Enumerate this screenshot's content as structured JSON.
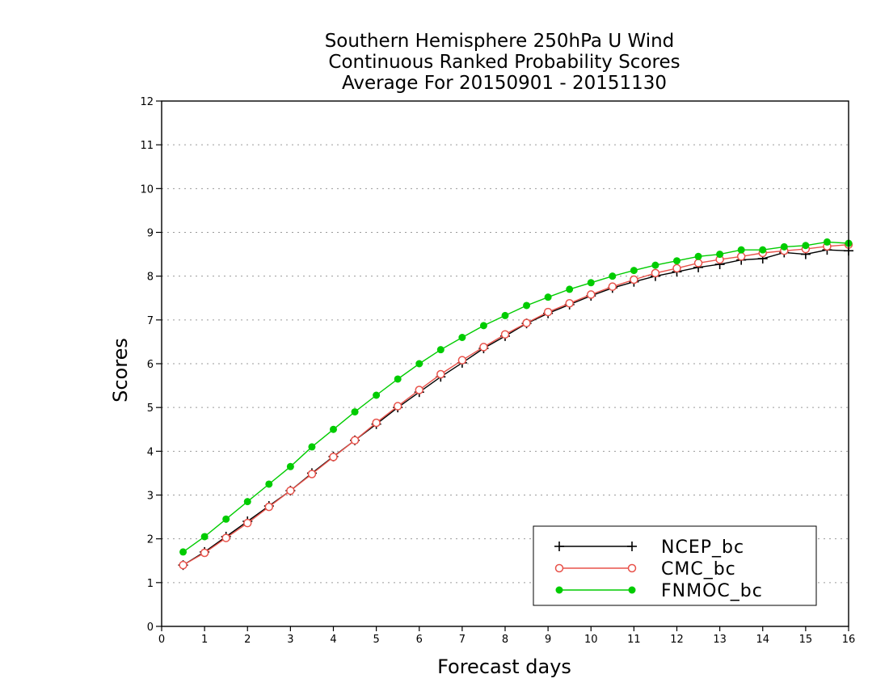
{
  "chart_data": {
    "type": "line",
    "title": [
      "Southern Hemisphere 250hPa U Wind",
      "Continuous Ranked Probability Scores",
      "Average For 20150901 - 20151130"
    ],
    "xlabel": "Forecast days",
    "ylabel": "Scores",
    "xlim": [
      0,
      16
    ],
    "ylim": [
      0,
      12
    ],
    "xticks": [
      "0",
      "1",
      "2",
      "3",
      "4",
      "5",
      "6",
      "7",
      "8",
      "9",
      "10",
      "11",
      "12",
      "13",
      "14",
      "15",
      "16"
    ],
    "yticks": [
      "0",
      "1",
      "2",
      "3",
      "4",
      "5",
      "6",
      "7",
      "8",
      "9",
      "10",
      "11",
      "12"
    ],
    "grid": "horizontal dotted",
    "legend_position": "bottom-right",
    "x": [
      0.5,
      1,
      1.5,
      2,
      2.5,
      3,
      3.5,
      4,
      4.5,
      5,
      5.5,
      6,
      6.5,
      7,
      7.5,
      8,
      8.5,
      9,
      9.5,
      10,
      10.5,
      11,
      11.5,
      12,
      12.5,
      13,
      13.5,
      14,
      14.5,
      15,
      15.5,
      16
    ],
    "series": [
      {
        "name": "NCEP_bc",
        "color": "#000000",
        "marker": "plus",
        "values": [
          1.4,
          1.7,
          2.05,
          2.4,
          2.75,
          3.1,
          3.5,
          3.88,
          4.25,
          4.62,
          5.0,
          5.35,
          5.7,
          6.02,
          6.35,
          6.63,
          6.92,
          7.15,
          7.35,
          7.55,
          7.73,
          7.87,
          8.0,
          8.1,
          8.2,
          8.27,
          8.37,
          8.4,
          8.54,
          8.5,
          8.6,
          8.58
        ]
      },
      {
        "name": "CMC_bc",
        "color": "#e8524a",
        "marker": "open-circle",
        "values": [
          1.4,
          1.68,
          2.02,
          2.36,
          2.73,
          3.1,
          3.48,
          3.87,
          4.25,
          4.65,
          5.03,
          5.4,
          5.76,
          6.08,
          6.38,
          6.67,
          6.93,
          7.18,
          7.38,
          7.58,
          7.76,
          7.92,
          8.07,
          8.18,
          8.3,
          8.38,
          8.45,
          8.53,
          8.58,
          8.62,
          8.68,
          8.72
        ]
      },
      {
        "name": "FNMOC_bc",
        "color": "#00cc00",
        "marker": "filled-circle",
        "values": [
          1.7,
          2.05,
          2.45,
          2.85,
          3.25,
          3.65,
          4.1,
          4.5,
          4.9,
          5.28,
          5.65,
          6.0,
          6.32,
          6.6,
          6.87,
          7.1,
          7.33,
          7.52,
          7.7,
          7.85,
          8.0,
          8.13,
          8.25,
          8.35,
          8.45,
          8.5,
          8.6,
          8.6,
          8.67,
          8.7,
          8.78,
          8.75
        ]
      }
    ]
  }
}
